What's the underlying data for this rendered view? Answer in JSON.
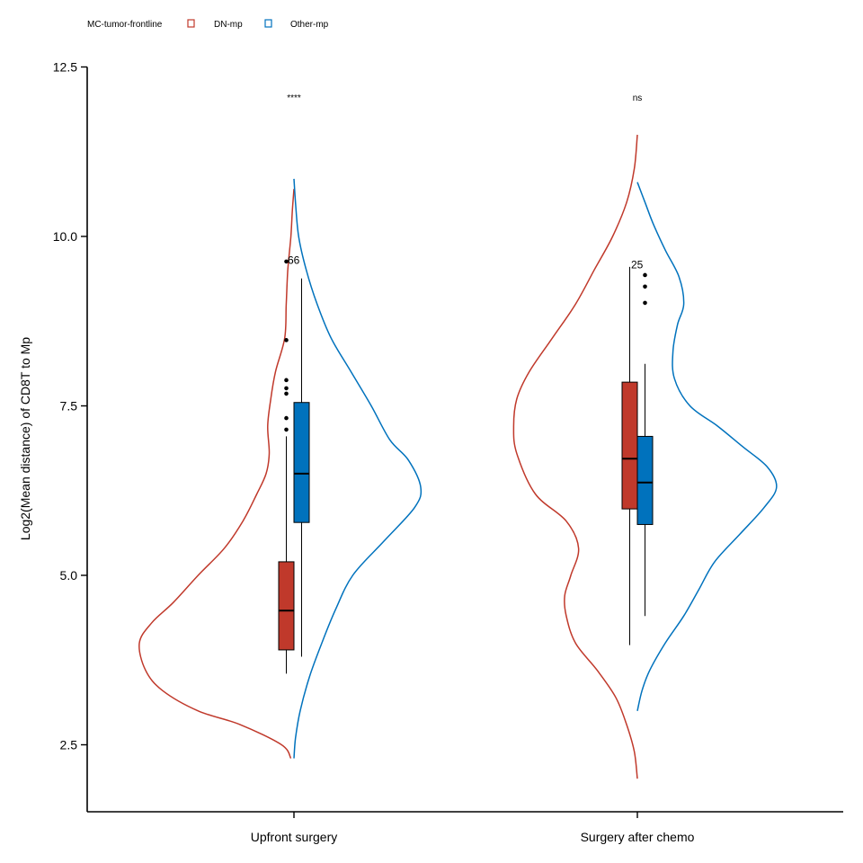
{
  "chart_data": {
    "type": "split-violin-box",
    "title": "",
    "xlabel": "",
    "ylabel": "Log2(Mean distance) of CD8T to Mp",
    "ylim": [
      1.5,
      12.5
    ],
    "yticks": [
      2.5,
      5.0,
      7.5,
      10.0,
      12.5
    ],
    "ytick_labels": [
      "2.5",
      "5.0",
      "7.5",
      "10.0",
      "12.5"
    ],
    "legend": {
      "title": "MC-tumor-frontline",
      "position": "top-left",
      "entries": [
        {
          "key": "dn",
          "label": "DN-mp",
          "color": "#c0392b"
        },
        {
          "key": "other",
          "label": "Other-mp",
          "color": "#0072bd"
        }
      ]
    },
    "categories": [
      "Upfront surgery",
      "Surgery after chemo"
    ],
    "significance": [
      "****",
      "ns"
    ],
    "series": [
      {
        "key": "dn",
        "name": "DN-mp",
        "color": "#c0392b",
        "groups": [
          {
            "violin_range": [
              2.3,
              10.7
            ],
            "density": [
              [
                2.3,
                0.02
              ],
              [
                2.5,
                0.08
              ],
              [
                2.8,
                0.35
              ],
              [
                3.0,
                0.62
              ],
              [
                3.3,
                0.85
              ],
              [
                3.6,
                0.96
              ],
              [
                4.0,
                1.0
              ],
              [
                4.3,
                0.92
              ],
              [
                4.6,
                0.78
              ],
              [
                5.0,
                0.62
              ],
              [
                5.4,
                0.45
              ],
              [
                5.8,
                0.33
              ],
              [
                6.2,
                0.24
              ],
              [
                6.5,
                0.18
              ],
              [
                6.8,
                0.16
              ],
              [
                7.2,
                0.17
              ],
              [
                7.6,
                0.15
              ],
              [
                8.0,
                0.12
              ],
              [
                8.5,
                0.06
              ],
              [
                9.0,
                0.05
              ],
              [
                9.5,
                0.04
              ],
              [
                10.0,
                0.02
              ],
              [
                10.4,
                0.01
              ],
              [
                10.7,
                0.0
              ]
            ],
            "box": {
              "q1": 3.9,
              "median": 4.48,
              "q3": 5.2,
              "whisker_low": 3.55,
              "whisker_high": 7.05
            },
            "outliers": [
              7.15,
              7.32,
              7.68,
              7.76,
              7.88,
              8.47,
              9.63
            ],
            "n_label": "66",
            "n_value": 9.65
          },
          {
            "violin_range": [
              2.0,
              11.5
            ],
            "density": [
              [
                2.0,
                0.0
              ],
              [
                2.4,
                0.02
              ],
              [
                2.8,
                0.07
              ],
              [
                3.2,
                0.14
              ],
              [
                3.6,
                0.26
              ],
              [
                4.0,
                0.4
              ],
              [
                4.4,
                0.46
              ],
              [
                4.7,
                0.47
              ],
              [
                5.0,
                0.43
              ],
              [
                5.4,
                0.38
              ],
              [
                5.8,
                0.46
              ],
              [
                6.2,
                0.66
              ],
              [
                6.8,
                0.78
              ],
              [
                7.2,
                0.8
              ],
              [
                7.6,
                0.78
              ],
              [
                8.0,
                0.7
              ],
              [
                8.5,
                0.55
              ],
              [
                9.0,
                0.4
              ],
              [
                9.5,
                0.28
              ],
              [
                10.0,
                0.16
              ],
              [
                10.5,
                0.07
              ],
              [
                11.0,
                0.02
              ],
              [
                11.5,
                0.0
              ]
            ],
            "box": {
              "q1": 5.98,
              "median": 6.72,
              "q3": 7.85,
              "whisker_low": 3.97,
              "whisker_high": 9.55
            },
            "outliers": [],
            "n_label": "25",
            "n_value": 9.58
          }
        ]
      },
      {
        "key": "other",
        "name": "Other-mp",
        "color": "#0072bd",
        "groups": [
          {
            "violin_range": [
              2.3,
              10.85
            ],
            "density": [
              [
                2.3,
                0.0
              ],
              [
                2.6,
                0.01
              ],
              [
                3.0,
                0.04
              ],
              [
                3.5,
                0.1
              ],
              [
                4.0,
                0.18
              ],
              [
                4.5,
                0.27
              ],
              [
                5.0,
                0.38
              ],
              [
                5.5,
                0.58
              ],
              [
                6.0,
                0.78
              ],
              [
                6.3,
                0.82
              ],
              [
                6.7,
                0.74
              ],
              [
                7.0,
                0.62
              ],
              [
                7.5,
                0.5
              ],
              [
                8.0,
                0.37
              ],
              [
                8.5,
                0.24
              ],
              [
                9.0,
                0.15
              ],
              [
                9.5,
                0.08
              ],
              [
                10.0,
                0.03
              ],
              [
                10.5,
                0.01
              ],
              [
                10.85,
                0.0
              ]
            ],
            "box": {
              "q1": 5.78,
              "median": 6.5,
              "q3": 7.55,
              "whisker_low": 3.8,
              "whisker_high": 9.38
            },
            "outliers": []
          },
          {
            "violin_range": [
              3.0,
              10.8
            ],
            "density": [
              [
                3.0,
                0.0
              ],
              [
                3.3,
                0.03
              ],
              [
                3.6,
                0.08
              ],
              [
                4.0,
                0.18
              ],
              [
                4.4,
                0.3
              ],
              [
                4.8,
                0.4
              ],
              [
                5.2,
                0.5
              ],
              [
                5.6,
                0.66
              ],
              [
                6.0,
                0.82
              ],
              [
                6.3,
                0.9
              ],
              [
                6.6,
                0.84
              ],
              [
                6.9,
                0.68
              ],
              [
                7.2,
                0.52
              ],
              [
                7.5,
                0.34
              ],
              [
                7.9,
                0.24
              ],
              [
                8.3,
                0.23
              ],
              [
                8.7,
                0.26
              ],
              [
                9.0,
                0.3
              ],
              [
                9.4,
                0.27
              ],
              [
                9.8,
                0.18
              ],
              [
                10.2,
                0.1
              ],
              [
                10.5,
                0.05
              ],
              [
                10.8,
                0.0
              ]
            ],
            "box": {
              "q1": 5.75,
              "median": 6.37,
              "q3": 7.05,
              "whisker_low": 4.4,
              "whisker_high": 8.12
            },
            "outliers": [
              9.02,
              9.26,
              9.43
            ]
          }
        ]
      }
    ]
  }
}
